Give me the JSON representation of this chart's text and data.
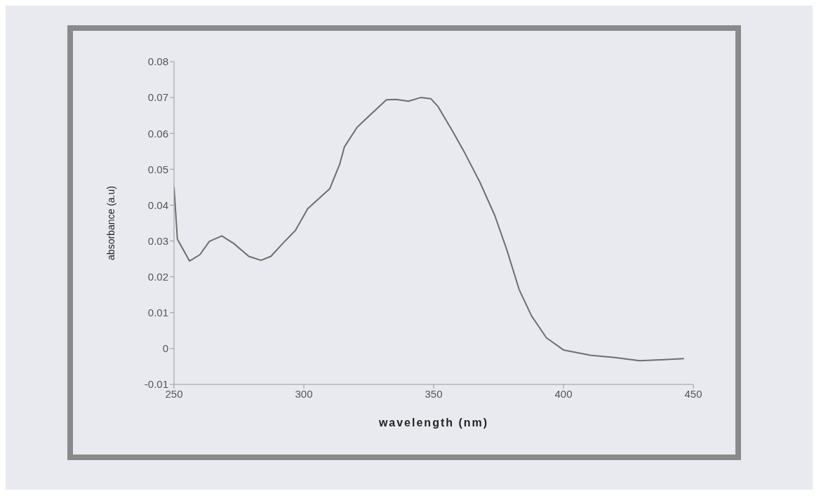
{
  "chart_data": {
    "type": "line",
    "xlabel": "wavelength (nm)",
    "ylabel": "absorbance (a.u)",
    "x": [
      250,
      251.3,
      256,
      260,
      263.6,
      268.4,
      273,
      278.8,
      283.5,
      287.3,
      292,
      296.8,
      301.5,
      305.3,
      310,
      313.8,
      315.6,
      320.5,
      325,
      331.8,
      335.5,
      340.3,
      345,
      348.9,
      351.7,
      357.4,
      362.1,
      367.8,
      373.5,
      378.2,
      382.9,
      387.7,
      393.4,
      400,
      410.4,
      419.9,
      429.3,
      438.8,
      446.4
    ],
    "series": [
      {
        "color": "#6e6e6e",
        "values": [
          0.045,
          0.0305,
          0.0244,
          0.0262,
          0.0299,
          0.0314,
          0.0293,
          0.0257,
          0.0246,
          0.0257,
          0.0294,
          0.033,
          0.039,
          0.0415,
          0.0446,
          0.0514,
          0.0562,
          0.0617,
          0.0648,
          0.0694,
          0.0695,
          0.069,
          0.07,
          0.0697,
          0.0675,
          0.0605,
          0.0544,
          0.0464,
          0.0372,
          0.0275,
          0.0165,
          0.0091,
          0.003,
          -0.0004,
          -0.0019,
          -0.0025,
          -0.0034,
          -0.0031,
          -0.0028
        ]
      }
    ],
    "xlim": [
      250,
      450
    ],
    "xticks": [
      250,
      300,
      350,
      400,
      450
    ],
    "ylim": [
      -0.01,
      0.08
    ],
    "yticks": [
      -0.01,
      0,
      0.01,
      0.02,
      0.03,
      0.04,
      0.05,
      0.06,
      0.07,
      0.08
    ],
    "grid": false,
    "legend": false,
    "marker": "none",
    "line_style": "solid"
  }
}
